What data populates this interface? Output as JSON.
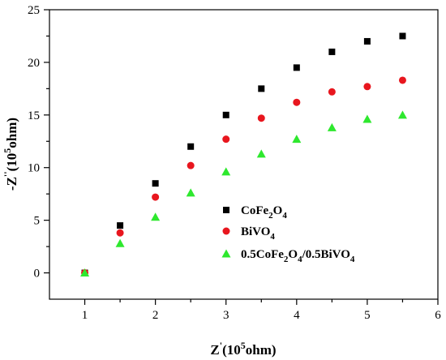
{
  "chart_data": {
    "type": "scatter",
    "xlabel": {
      "main": "Z",
      "sup1": "'",
      "paren": "(10",
      "sup2": "5",
      "unit": "ohm)"
    },
    "ylabel": {
      "main": "-Z",
      "sup1": "''",
      "paren": "(10",
      "sup2": "5",
      "unit": "ohm)"
    },
    "xlim": [
      0.5,
      6
    ],
    "ylim": [
      -2.5,
      25
    ],
    "xticks": [
      1,
      2,
      3,
      4,
      5,
      6
    ],
    "yticks": [
      0,
      5,
      10,
      15,
      20,
      25
    ],
    "legend_position": "lower-right",
    "series": [
      {
        "name_parts": [
          [
            "CoFe",
            false
          ],
          [
            "2",
            true
          ],
          [
            "O",
            false
          ],
          [
            "4",
            true
          ]
        ],
        "marker": "square",
        "color": "#000000",
        "x": [
          1,
          1.5,
          2,
          2.5,
          3,
          3.5,
          4,
          4.5,
          5,
          5.5
        ],
        "y": [
          0,
          4.5,
          8.5,
          12,
          15,
          17.5,
          19.5,
          21,
          22,
          22.5
        ]
      },
      {
        "name_parts": [
          [
            "BiVO",
            false
          ],
          [
            "4",
            true
          ]
        ],
        "marker": "circle",
        "color": "#e8161e",
        "x": [
          1,
          1.5,
          2,
          2.5,
          3,
          3.5,
          4,
          4.5,
          5,
          5.5
        ],
        "y": [
          0,
          3.8,
          7.2,
          10.2,
          12.7,
          14.7,
          16.2,
          17.2,
          17.7,
          18.3
        ]
      },
      {
        "name_parts": [
          [
            "0.5CoFe",
            false
          ],
          [
            "2",
            true
          ],
          [
            "O",
            false
          ],
          [
            "4",
            true
          ],
          [
            "/0.5BiVO",
            false
          ],
          [
            "4",
            true
          ]
        ],
        "marker": "triangle",
        "color": "#2ee82e",
        "x": [
          1,
          1.5,
          2,
          2.5,
          3,
          3.5,
          4,
          4.5,
          5,
          5.5
        ],
        "y": [
          0,
          2.8,
          5.3,
          7.6,
          9.6,
          11.3,
          12.7,
          13.8,
          14.6,
          15
        ]
      }
    ]
  }
}
